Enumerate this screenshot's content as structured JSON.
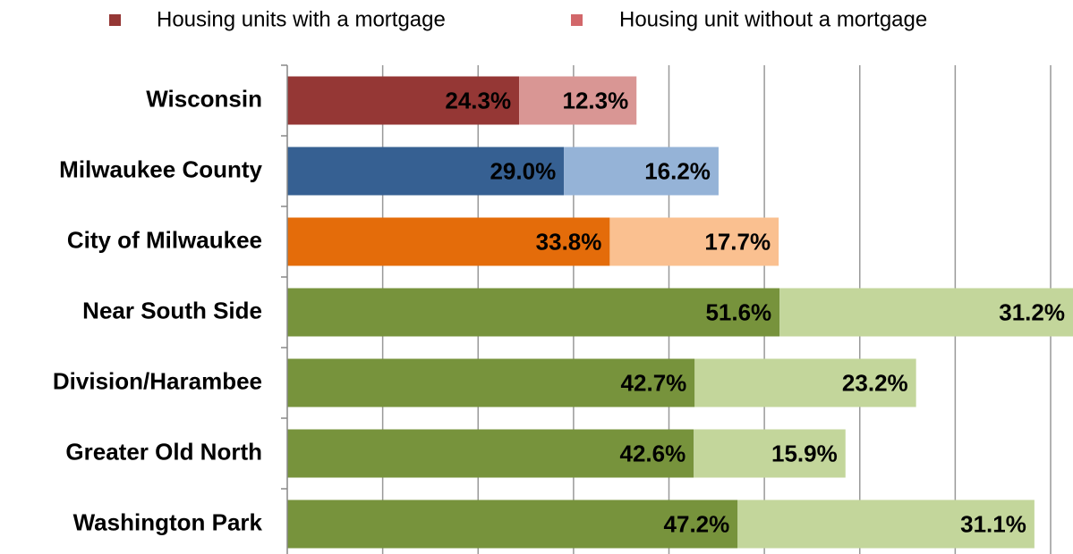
{
  "chart_data": {
    "type": "stacked-bar-horizontal",
    "categories": [
      "Wisconsin",
      "Milwaukee County",
      "City of Milwaukee",
      "Near South Side",
      "Division/Harambee",
      "Greater Old North",
      "Washington Park"
    ],
    "series": [
      {
        "name": "Housing units with a mortgage",
        "color": "#953735",
        "colors": [
          "#953735",
          "#366092",
          "#e46c0a",
          "#77933c",
          "#77933c",
          "#77933c",
          "#77933c"
        ],
        "values": [
          24.3,
          29.0,
          33.8,
          51.6,
          42.7,
          42.6,
          47.2
        ],
        "value_labels": [
          "24.3%",
          "29.0%",
          "33.8%",
          "51.6%",
          "42.7%",
          "42.6%",
          "47.2%"
        ]
      },
      {
        "name": "Housing unit without a mortgage",
        "color": "#d2676a",
        "colors": [
          "#d99694",
          "#95b3d7",
          "#fac090",
          "#c3d69b",
          "#c3d69b",
          "#c3d69b",
          "#c3d69b"
        ],
        "values": [
          12.3,
          16.2,
          17.7,
          31.2,
          23.2,
          15.9,
          31.1
        ],
        "value_labels": [
          "12.3%",
          "16.2%",
          "17.7%",
          "31.2%",
          "23.2%",
          "15.9%",
          "31.1%"
        ]
      }
    ],
    "xlim": [
      0,
      80
    ],
    "xticks": [
      0,
      10,
      20,
      30,
      40,
      50,
      60,
      70,
      80
    ],
    "grid": true,
    "legend": "top"
  }
}
